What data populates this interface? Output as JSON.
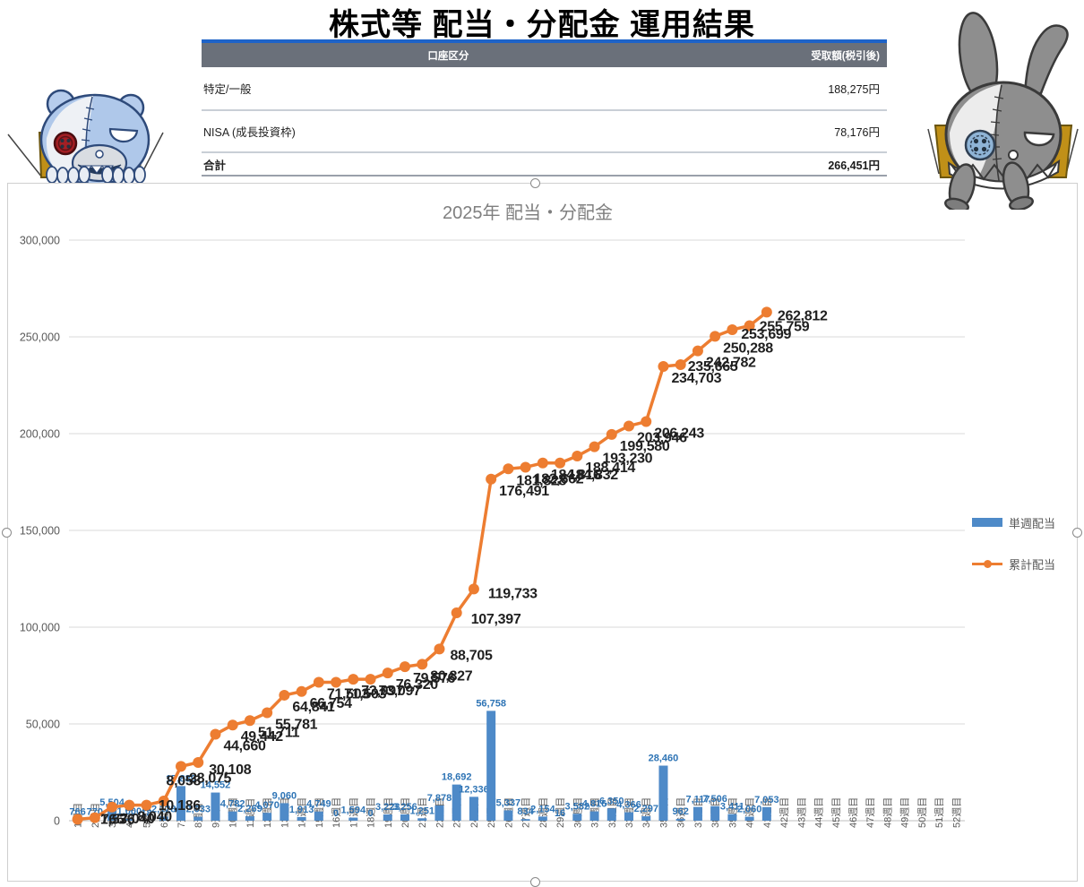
{
  "page": {
    "title": "株式等 配当・分配金 運用結果"
  },
  "summary_table": {
    "columns": [
      "口座区分",
      "受取額(税引後)"
    ],
    "rows": [
      {
        "account": "特定/一般",
        "amount": "188,275円"
      },
      {
        "account": "NISA (成長投資枠)",
        "amount": "78,176円"
      },
      {
        "account": "合計",
        "amount": "266,451円"
      }
    ]
  },
  "mascots": {
    "left": "patched-teddy-bear-plush",
    "right": "patched-rabbit-plush"
  },
  "chart_data": {
    "type": "combo-bar-line",
    "title": "2025年 配当・分配金",
    "categories": [
      "1週目",
      "2週目",
      "3週目",
      "4週目",
      "5週目",
      "6週目",
      "7週目",
      "8週目",
      "9週目",
      "10週目",
      "11週目",
      "12週目",
      "13週目",
      "14週目",
      "15週目",
      "16週目",
      "17週目",
      "18週目",
      "19週目",
      "20週目",
      "21週目",
      "22週目",
      "23週目",
      "24週目",
      "25週目",
      "26週目",
      "27週目",
      "28週目",
      "29週目",
      "30週目",
      "31週目",
      "32週目",
      "33週目",
      "34週目",
      "35週目",
      "36週目",
      "37週目",
      "38週目",
      "39週目",
      "40週目",
      "41週目",
      "42週目",
      "43週目",
      "44週目",
      "45週目",
      "46週目",
      "47週目",
      "48週目",
      "49週目",
      "50週目",
      "51週目",
      "52週目"
    ],
    "weeks_with_data": 41,
    "series": [
      {
        "name": "単週配当",
        "type": "bar",
        "color": "#4E8AC8",
        "values": [
          766,
          770,
          5504,
          1000,
          18,
          2128,
          17889,
          2033,
          14552,
          4782,
          2269,
          4070,
          9060,
          1913,
          4749,
          0,
          1594,
          0,
          3223,
          3256,
          1251,
          7878,
          18692,
          12336,
          56758,
          5337,
          834,
          2154,
          16,
          3582,
          4816,
          6350,
          4366,
          2297,
          28460,
          962,
          7117,
          7506,
          3411,
          2060,
          7053
        ]
      },
      {
        "name": "累計配当",
        "type": "line",
        "color": "#ED7D31",
        "values": [
          766,
          1536,
          7040,
          8040,
          8058,
          10186,
          28075,
          30108,
          44660,
          49442,
          51711,
          55781,
          64841,
          66754,
          71503,
          71503,
          73097,
          73097,
          76320,
          79576,
          80827,
          88705,
          107397,
          119733,
          176491,
          181828,
          182662,
          184816,
          184832,
          188414,
          193230,
          199580,
          203946,
          206243,
          234703,
          235665,
          242782,
          250288,
          253699,
          255759,
          262812
        ]
      }
    ],
    "ylim": [
      0,
      300000
    ],
    "ytick_step": 50000,
    "ytick_labels": [
      "0",
      "50,000",
      "100,000",
      "150,000",
      "200,000",
      "250,000",
      "300,000"
    ],
    "grid": "horizontal",
    "legend_position": "right",
    "label_colors": {
      "bar": "#2E74B5",
      "line": "#1F1F1F"
    },
    "line_label_offsets": {
      "1": [
        26,
        5
      ],
      "2": [
        6,
        7
      ],
      "5": [
        22,
        -22
      ],
      "6": [
        -6,
        10
      ],
      "8": [
        12,
        13
      ],
      "22": [
        12,
        12
      ],
      "23": [
        16,
        12
      ],
      "24": [
        16,
        10
      ],
      "36": [
        8,
        7
      ],
      "39": [
        10,
        10
      ],
      "40": [
        11,
        6
      ],
      "41": [
        12,
        9
      ]
    }
  }
}
